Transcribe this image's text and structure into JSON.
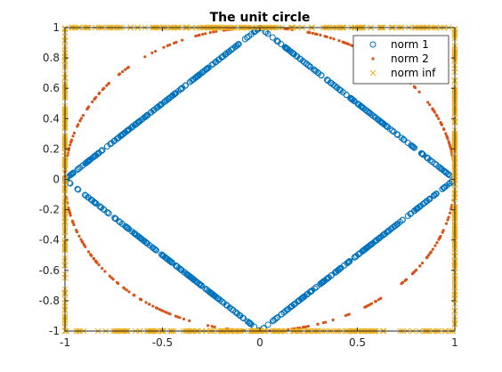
{
  "chart_data": {
    "type": "scatter",
    "title": "The unit circle",
    "xlabel": "",
    "ylabel": "",
    "xlim": [
      -1,
      1
    ],
    "ylim": [
      -1,
      1
    ],
    "x_ticks": [
      -1,
      -0.5,
      0,
      0.5,
      1
    ],
    "x_tick_labels": [
      "-1",
      "-0.5",
      "0",
      "0.5",
      "1"
    ],
    "y_ticks": [
      -1,
      -0.8,
      -0.6,
      -0.4,
      -0.2,
      0,
      0.2,
      0.4,
      0.6,
      0.8,
      1
    ],
    "y_tick_labels": [
      "-1",
      "-0.8",
      "-0.6",
      "-0.4",
      "-0.2",
      "0",
      "0.2",
      "0.4",
      "0.6",
      "0.8",
      "1"
    ],
    "grid": false,
    "legend_position": "top-right",
    "series": [
      {
        "name": "norm 1",
        "marker": "circle-open",
        "color": "#0072BD",
        "shape": "diamond |x|+|y|=1",
        "points": [
          [
            1,
            0
          ],
          [
            0.8,
            0.2
          ],
          [
            0.6,
            0.4
          ],
          [
            0.4,
            0.6
          ],
          [
            0.2,
            0.8
          ],
          [
            0,
            1
          ],
          [
            -0.2,
            0.8
          ],
          [
            -0.4,
            0.6
          ],
          [
            -0.6,
            0.4
          ],
          [
            -0.8,
            0.2
          ],
          [
            -1,
            0
          ],
          [
            -0.8,
            -0.2
          ],
          [
            -0.6,
            -0.4
          ],
          [
            -0.4,
            -0.6
          ],
          [
            -0.2,
            -0.8
          ],
          [
            0,
            -1
          ],
          [
            0.2,
            -0.8
          ],
          [
            0.4,
            -0.6
          ],
          [
            0.6,
            -0.4
          ],
          [
            0.8,
            -0.2
          ]
        ]
      },
      {
        "name": "norm 2",
        "marker": "dot",
        "color": "#D95319",
        "shape": "circle x^2+y^2=1",
        "points": [
          [
            1,
            0
          ],
          [
            0.81,
            0.59
          ],
          [
            0.31,
            0.95
          ],
          [
            -0.31,
            0.95
          ],
          [
            -0.81,
            0.59
          ],
          [
            -1,
            0
          ],
          [
            -0.81,
            -0.59
          ],
          [
            -0.31,
            -0.95
          ],
          [
            0.31,
            -0.95
          ],
          [
            0.81,
            -0.59
          ]
        ]
      },
      {
        "name": "norm inf",
        "marker": "x",
        "color": "#EDB120",
        "shape": "square max(|x|,|y|)=1",
        "points": [
          [
            1,
            1
          ],
          [
            1,
            0.5
          ],
          [
            1,
            0
          ],
          [
            1,
            -0.5
          ],
          [
            1,
            -1
          ],
          [
            0.5,
            -1
          ],
          [
            0,
            -1
          ],
          [
            -0.5,
            -1
          ],
          [
            -1,
            -1
          ],
          [
            -1,
            -0.5
          ],
          [
            -1,
            0
          ],
          [
            -1,
            0.5
          ],
          [
            -1,
            1
          ],
          [
            -0.5,
            1
          ],
          [
            0,
            1
          ],
          [
            0.5,
            1
          ]
        ]
      }
    ]
  }
}
